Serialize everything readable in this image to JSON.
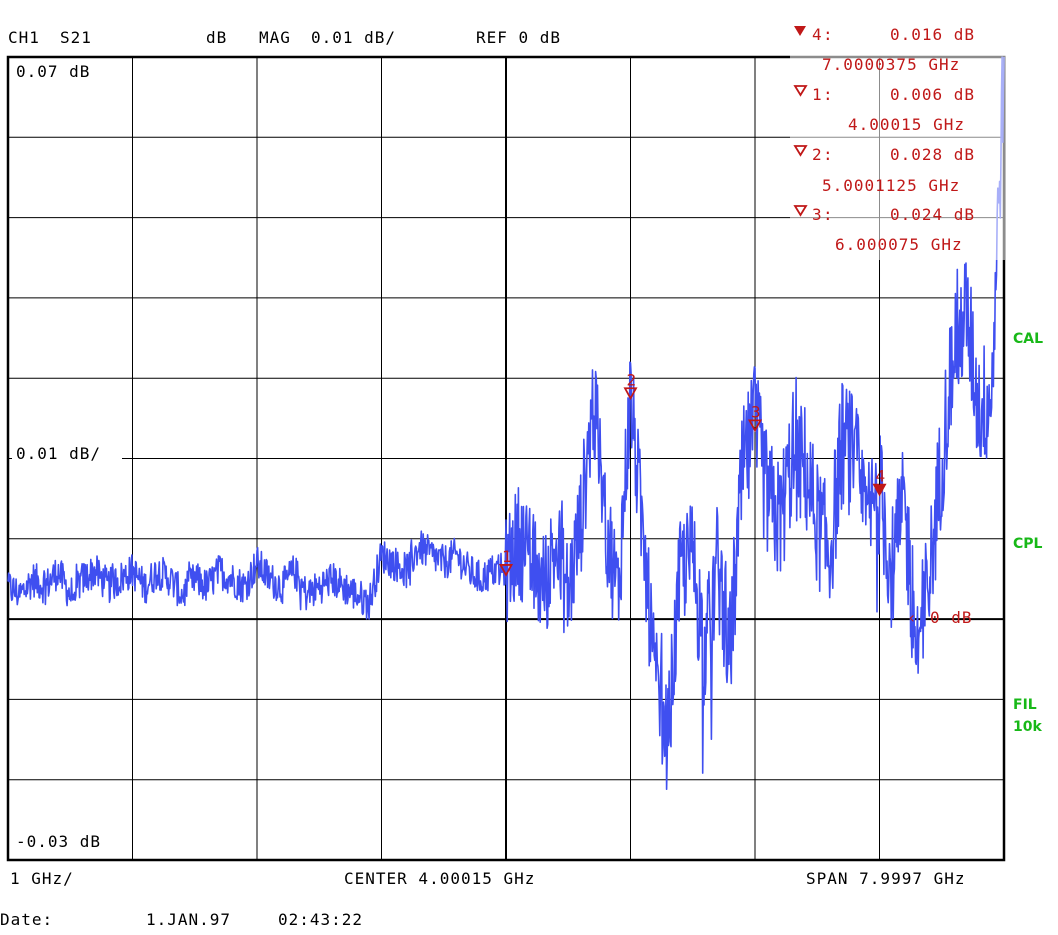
{
  "header": {
    "channel": "CH1",
    "param": "S21",
    "format_unit": "dB",
    "format": "MAG",
    "scale": "0.01 dB/",
    "ref": "REF 0 dB"
  },
  "markers": [
    {
      "id": "4",
      "value": "0.016 dB",
      "freq": "7.0000375 GHz",
      "active": true
    },
    {
      "id": "1",
      "value": "0.006 dB",
      "freq": "4.00015 GHz",
      "active": false
    },
    {
      "id": "2",
      "value": "0.028 dB",
      "freq": "5.0001125 GHz",
      "active": false
    },
    {
      "id": "3",
      "value": "0.024 dB",
      "freq": "6.000075 GHz",
      "active": false
    }
  ],
  "scale_labels": {
    "top": "0.07 dB",
    "mid": "0.01 dB/",
    "bottom": "-0.03 dB",
    "ref_pos": "0 dB"
  },
  "side_labels": {
    "cal": "CAL",
    "cpl": "CPL",
    "fil": "FIL",
    "fil_bw": "10k"
  },
  "footer": {
    "div": "1 GHz/",
    "center": "CENTER 4.00015 GHz",
    "span": "SPAN 7.9997 GHz",
    "date_label": "Date:",
    "date": "1.JAN.97",
    "time": "02:43:22"
  },
  "colors": {
    "trace": "#3f4ff0",
    "marker": "#c01818",
    "side": "#18b818",
    "grid": "#000000"
  },
  "chart_data": {
    "type": "line",
    "xlabel": "",
    "ylabel": "",
    "x_unit": "GHz",
    "y_unit": "dB",
    "xlim": [
      0.0,
      8.0
    ],
    "ylim": [
      -0.03,
      0.07
    ],
    "grid": true,
    "series": [
      {
        "x": [
          0.0,
          0.1,
          0.2,
          0.3,
          0.4,
          0.5,
          0.6,
          0.7,
          0.8,
          0.9,
          1.0,
          1.1,
          1.2,
          1.3,
          1.4,
          1.5,
          1.6,
          1.7,
          1.8,
          1.9,
          2.0,
          2.1,
          2.2,
          2.3,
          2.4,
          2.5,
          2.6,
          2.7,
          2.8,
          2.9,
          3.0,
          3.1,
          3.2,
          3.3,
          3.4,
          3.5,
          3.6,
          3.7,
          3.8,
          3.9,
          4.0,
          4.1,
          4.2,
          4.3,
          4.4,
          4.5,
          4.6,
          4.7,
          4.8,
          4.9,
          5.0,
          5.1,
          5.2,
          5.3,
          5.4,
          5.5,
          5.6,
          5.7,
          5.8,
          5.9,
          6.0,
          6.1,
          6.2,
          6.3,
          6.4,
          6.5,
          6.6,
          6.7,
          6.8,
          6.9,
          7.0,
          7.1,
          7.2,
          7.3,
          7.4,
          7.5,
          7.6,
          7.7,
          7.8,
          7.9,
          8.0
        ],
        "y": [
          0.004,
          0.003,
          0.005,
          0.004,
          0.006,
          0.003,
          0.005,
          0.006,
          0.004,
          0.005,
          0.006,
          0.004,
          0.006,
          0.005,
          0.003,
          0.005,
          0.004,
          0.006,
          0.005,
          0.004,
          0.007,
          0.005,
          0.004,
          0.006,
          0.003,
          0.004,
          0.005,
          0.004,
          0.003,
          0.002,
          0.008,
          0.007,
          0.006,
          0.009,
          0.008,
          0.007,
          0.008,
          0.006,
          0.005,
          0.006,
          0.006,
          0.01,
          0.007,
          0.004,
          0.009,
          0.003,
          0.012,
          0.027,
          0.012,
          0.003,
          0.028,
          0.01,
          -0.008,
          -0.015,
          0.006,
          0.008,
          -0.005,
          0.007,
          -0.004,
          0.018,
          0.024,
          0.015,
          0.012,
          0.02,
          0.019,
          0.012,
          0.008,
          0.022,
          0.02,
          0.012,
          0.016,
          0.006,
          0.014,
          -0.004,
          0.005,
          0.02,
          0.035,
          0.038,
          0.026,
          0.028,
          0.07
        ]
      }
    ],
    "markers": [
      {
        "id": "1",
        "x": 4.00015,
        "y": 0.006
      },
      {
        "id": "2",
        "x": 5.0001125,
        "y": 0.028
      },
      {
        "id": "3",
        "x": 6.000075,
        "y": 0.024
      },
      {
        "id": "4",
        "x": 7.0000375,
        "y": 0.016
      }
    ]
  }
}
